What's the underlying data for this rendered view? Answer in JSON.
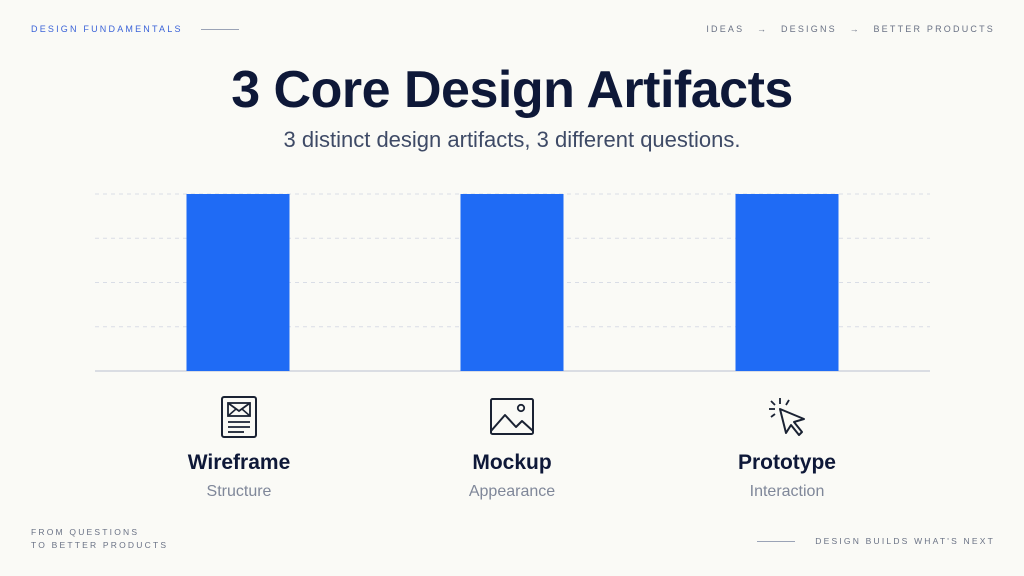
{
  "header": {
    "section_label": "DESIGN FUNDAMENTALS",
    "flow": [
      "IDEAS",
      "DESIGNS",
      "BETTER PRODUCTS"
    ],
    "flow_arrow": "→"
  },
  "title": "3 Core Design Artifacts",
  "subtitle": "3 distinct design artifacts, 3 different questions.",
  "chart_data": {
    "type": "bar",
    "categories": [
      "Wireframe",
      "Mockup",
      "Prototype"
    ],
    "values": [
      4,
      4,
      4
    ],
    "ylim": [
      0,
      4
    ],
    "grid": true,
    "bar_color": "#1F6BF5",
    "grid_color": "#D9DDE6",
    "axis_color": "#C7CCD8"
  },
  "artifacts": [
    {
      "name": "Wireframe",
      "desc": "Structure",
      "icon": "wireframe-document-icon"
    },
    {
      "name": "Mockup",
      "desc": "Appearance",
      "icon": "image-icon"
    },
    {
      "name": "Prototype",
      "desc": "Interaction",
      "icon": "cursor-click-icon"
    }
  ],
  "footer": {
    "left_line1": "FROM QUESTIONS",
    "left_line2": "TO BETTER PRODUCTS",
    "right": "DESIGN BUILDS WHAT'S NEXT"
  },
  "colors": {
    "accent": "#3B63D8",
    "bar": "#1F6BF5",
    "title": "#0E1838",
    "background": "#FAFAF6"
  }
}
